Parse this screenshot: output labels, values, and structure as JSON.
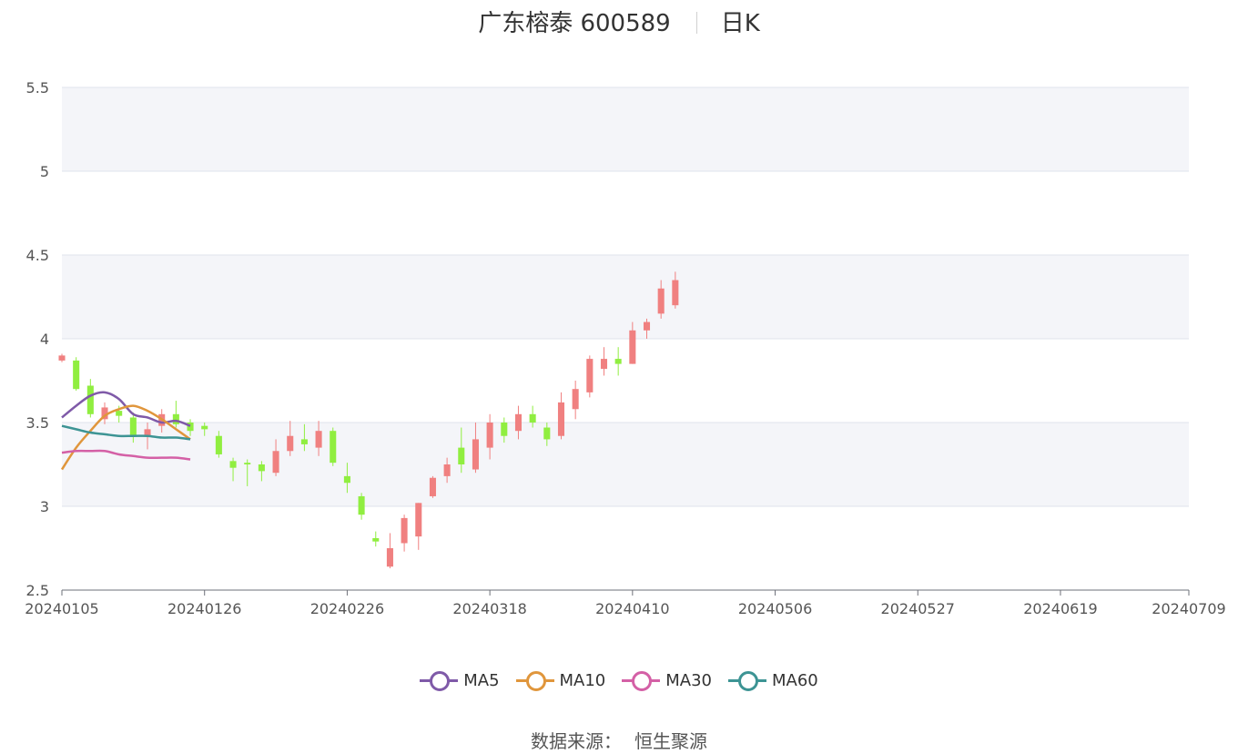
{
  "title": {
    "name": "广东榕泰 600589",
    "period": "日K"
  },
  "source": {
    "label": "数据来源：",
    "value": "恒生聚源"
  },
  "colors": {
    "up": "#f08080",
    "down": "#90ee40",
    "MA5": "#7f5aa8",
    "MA10": "#e0963c",
    "MA30": "#d460a6",
    "MA60": "#3d9494",
    "grid": "#dfe3ec",
    "band": "#f4f5f9"
  },
  "chart_data": {
    "type": "candlestick",
    "ylim": [
      2.5,
      5.5
    ],
    "yticks": [
      "2.5",
      "3",
      "3.5",
      "4",
      "4.5",
      "5",
      "5.5"
    ],
    "xtick_labels": [
      {
        "index": 0,
        "label": "20240105"
      },
      {
        "index": 10,
        "label": "20240126"
      },
      {
        "index": 20,
        "label": "20240226"
      },
      {
        "index": 30,
        "label": "20240318"
      },
      {
        "index": 40,
        "label": "20240410"
      },
      {
        "index": 50,
        "label": "20240506"
      },
      {
        "index": 60,
        "label": "20240527"
      },
      {
        "index": 70,
        "label": "20240619"
      },
      {
        "index": 79,
        "label": "20240709"
      }
    ],
    "candles": [
      [
        3.87,
        3.9,
        3.86,
        3.91
      ],
      [
        3.87,
        3.7,
        3.69,
        3.89
      ],
      [
        3.72,
        3.55,
        3.53,
        3.76
      ],
      [
        3.52,
        3.59,
        3.49,
        3.62
      ],
      [
        3.57,
        3.54,
        3.5,
        3.6
      ],
      [
        3.53,
        3.42,
        3.38,
        3.56
      ],
      [
        3.42,
        3.46,
        3.34,
        3.5
      ],
      [
        3.48,
        3.55,
        3.44,
        3.58
      ],
      [
        3.55,
        3.49,
        3.47,
        3.63
      ],
      [
        3.5,
        3.45,
        3.42,
        3.52
      ],
      [
        3.48,
        3.46,
        3.42,
        3.5
      ],
      [
        3.42,
        3.31,
        3.29,
        3.45
      ],
      [
        3.27,
        3.23,
        3.15,
        3.29
      ],
      [
        3.26,
        3.25,
        3.12,
        3.28
      ],
      [
        3.25,
        3.21,
        3.15,
        3.27
      ],
      [
        3.2,
        3.33,
        3.18,
        3.4
      ],
      [
        3.33,
        3.42,
        3.3,
        3.51
      ],
      [
        3.4,
        3.37,
        3.33,
        3.49
      ],
      [
        3.35,
        3.45,
        3.3,
        3.51
      ],
      [
        3.45,
        3.26,
        3.24,
        3.47
      ],
      [
        3.18,
        3.14,
        3.08,
        3.26
      ],
      [
        3.06,
        2.95,
        2.92,
        3.08
      ],
      [
        2.81,
        2.79,
        2.76,
        2.85
      ],
      [
        2.64,
        2.75,
        2.63,
        2.84
      ],
      [
        2.78,
        2.93,
        2.73,
        2.95
      ],
      [
        2.82,
        3.02,
        2.74,
        3.02
      ],
      [
        3.06,
        3.17,
        3.05,
        3.18
      ],
      [
        3.18,
        3.25,
        3.14,
        3.29
      ],
      [
        3.35,
        3.25,
        3.2,
        3.47
      ],
      [
        3.22,
        3.4,
        3.2,
        3.5
      ],
      [
        3.35,
        3.5,
        3.28,
        3.55
      ],
      [
        3.5,
        3.42,
        3.38,
        3.53
      ],
      [
        3.45,
        3.55,
        3.4,
        3.6
      ],
      [
        3.55,
        3.5,
        3.47,
        3.6
      ],
      [
        3.47,
        3.4,
        3.36,
        3.5
      ],
      [
        3.42,
        3.62,
        3.4,
        3.68
      ],
      [
        3.58,
        3.7,
        3.52,
        3.75
      ],
      [
        3.68,
        3.88,
        3.65,
        3.9
      ],
      [
        3.82,
        3.88,
        3.78,
        3.95
      ],
      [
        3.88,
        3.85,
        3.78,
        3.95
      ],
      [
        3.85,
        4.05,
        3.85,
        4.1
      ],
      [
        4.05,
        4.1,
        4.0,
        4.12
      ],
      [
        4.15,
        4.3,
        4.12,
        4.35
      ],
      [
        4.2,
        4.35,
        4.18,
        4.4
      ]
    ],
    "series": [
      {
        "name": "MA5",
        "values": [
          3.53,
          3.6,
          3.66,
          3.68,
          3.64,
          3.55,
          3.53,
          3.5,
          3.51,
          3.48
        ]
      },
      {
        "name": "MA10",
        "values": [
          3.22,
          3.35,
          3.45,
          3.54,
          3.58,
          3.6,
          3.57,
          3.52,
          3.46,
          3.4
        ]
      },
      {
        "name": "MA30",
        "values": [
          3.32,
          3.33,
          3.33,
          3.33,
          3.31,
          3.3,
          3.29,
          3.29,
          3.29,
          3.28
        ]
      },
      {
        "name": "MA60",
        "values": [
          3.48,
          3.46,
          3.44,
          3.43,
          3.42,
          3.42,
          3.42,
          3.41,
          3.41,
          3.4
        ]
      }
    ]
  }
}
